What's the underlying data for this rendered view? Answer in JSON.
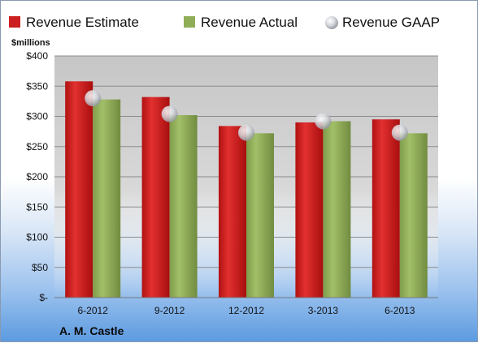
{
  "chart_data": {
    "type": "bar",
    "company": "A. M. Castle",
    "y_unit": "$millions",
    "categories": [
      "6-2012",
      "9-2012",
      "12-2012",
      "3-2013",
      "6-2013"
    ],
    "ylim": [
      0,
      400
    ],
    "y_ticks": [
      {
        "value": 0,
        "label": "$-"
      },
      {
        "value": 50,
        "label": "$50"
      },
      {
        "value": 100,
        "label": "$100"
      },
      {
        "value": 150,
        "label": "$150"
      },
      {
        "value": 200,
        "label": "$200"
      },
      {
        "value": 250,
        "label": "$250"
      },
      {
        "value": 300,
        "label": "$300"
      },
      {
        "value": 350,
        "label": "$350"
      },
      {
        "value": 400,
        "label": "$400"
      }
    ],
    "grid": true,
    "legend_position": "top",
    "series": [
      {
        "name": "Revenue Estimate",
        "mark": "bar",
        "color": "#cc1f1f",
        "values": [
          358,
          332,
          284,
          290,
          295
        ]
      },
      {
        "name": "Revenue Actual",
        "mark": "bar",
        "color": "#8fae57",
        "values": [
          328,
          302,
          272,
          292,
          272
        ]
      },
      {
        "name": "Revenue GAAP",
        "mark": "bubble",
        "color": "#c9ccd3",
        "values": [
          330,
          304,
          273,
          292,
          273
        ]
      }
    ]
  }
}
